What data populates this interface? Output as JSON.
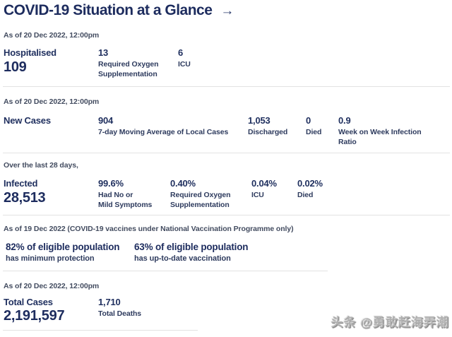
{
  "colors": {
    "navy": "#1d2c5e",
    "sub_navy": "#2e3b5e",
    "asof_text": "#434c60",
    "divider": "#e3e3e3",
    "watermark_gray": "#b0b0b0",
    "background": "#ffffff"
  },
  "title": {
    "text": "COVID-19 Situation at a Glance",
    "arrow": "→"
  },
  "hospitalised": {
    "as_of": "As of 20 Dec 2022, 12:00pm",
    "label": "Hospitalised",
    "value": "109",
    "stats": [
      {
        "value": "13",
        "label": "Required Oxygen\nSupplementation"
      },
      {
        "value": "6",
        "label": "ICU"
      }
    ]
  },
  "new_cases": {
    "as_of": "As of 20 Dec 2022, 12:00pm",
    "label": "New Cases",
    "stats": [
      {
        "value": "904",
        "label": "7-day Moving Average of Local Cases"
      },
      {
        "value": "1,053",
        "label": "Discharged"
      },
      {
        "value": "0",
        "label": "Died"
      },
      {
        "value": "0.9",
        "label": "Week on Week Infection\nRatio"
      }
    ]
  },
  "infected": {
    "lead": "Over the last 28 days,",
    "label": "Infected",
    "value": "28,513",
    "stats": [
      {
        "value": "99.6%",
        "label": "Had No or\nMild Symptoms"
      },
      {
        "value": "0.40%",
        "label": "Required Oxygen\nSupplementation"
      },
      {
        "value": "0.04%",
        "label": "ICU"
      },
      {
        "value": "0.02%",
        "label": "Died"
      }
    ]
  },
  "vaccination": {
    "as_of": "As of 19 Dec 2022 (COVID-19 vaccines under National Vaccination Programme only)",
    "items": [
      {
        "headline": "82% of eligible population",
        "sub": "has minimum protection"
      },
      {
        "headline": "63% of eligible population",
        "sub": "has up-to-date vaccination"
      }
    ]
  },
  "totals": {
    "as_of": "As of 20 Dec 2022, 12:00pm",
    "label": "Total Cases",
    "value": "2,191,597",
    "stats": [
      {
        "value": "1,710",
        "label": "Total Deaths"
      }
    ]
  },
  "watermark": "头条 @勇敢赶海弄潮"
}
